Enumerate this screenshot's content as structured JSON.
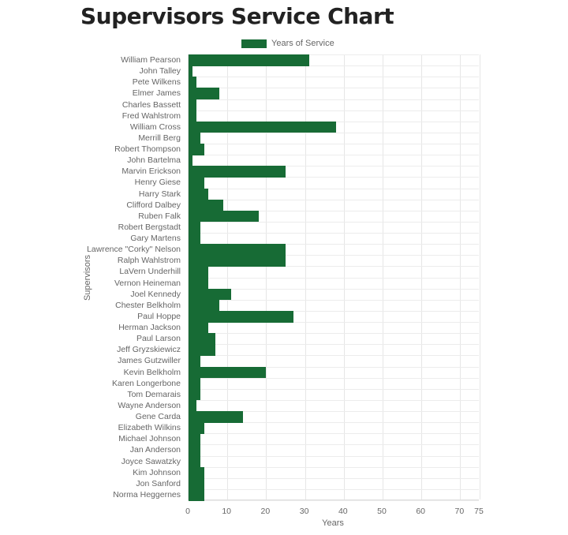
{
  "page": {
    "title": "Supervisors Service Chart"
  },
  "colors": {
    "bar": "#176b35",
    "grid": "#e6e6e6",
    "text": "#666666"
  },
  "chart_data": {
    "type": "bar",
    "orientation": "horizontal",
    "title": "Supervisors Service Chart",
    "xlabel": "Years",
    "ylabel": "Supervisors",
    "xlim": [
      0,
      75
    ],
    "xticks": [
      "0",
      "10",
      "20",
      "30",
      "40",
      "50",
      "60",
      "70",
      "75"
    ],
    "grid": true,
    "legend": {
      "position": "top",
      "entries": [
        "Years of Service"
      ]
    },
    "categories": [
      "William Pearson",
      "John Talley",
      "Pete Wilkens",
      "Elmer James",
      "Charles Bassett",
      "Fred Wahlstrom",
      "William Cross",
      "Merrill Berg",
      "Robert Thompson",
      "John Bartelma",
      "Marvin Erickson",
      "Henry Giese",
      "Harry Stark",
      "Clifford Dalbey",
      "Ruben Falk",
      "Robert Bergstadt",
      "Gary Martens",
      "Lawrence \"Corky\" Nelson",
      "Ralph Wahlstrom",
      "LaVern Underhill",
      "Vernon Heineman",
      "Joel Kennedy",
      "Chester Belkholm",
      "Paul Hoppe",
      "Herman Jackson",
      "Paul Larson",
      "Jeff Gryzskiewicz",
      "James Gutzwiller",
      "Kevin Belkholm",
      "Karen Longerbone",
      "Tom Demarais",
      "Wayne Anderson",
      "Gene Carda",
      "Elizabeth Wilkins",
      "Michael Johnson",
      "Jan Anderson",
      "Joyce Sawatzky",
      "Kim Johnson",
      "Jon Sanford",
      "Norma Heggernes"
    ],
    "series": [
      {
        "name": "Years of Service",
        "values": [
          31,
          1,
          2,
          8,
          2,
          2,
          38,
          3,
          4,
          1,
          25,
          4,
          5,
          9,
          18,
          3,
          3,
          25,
          25,
          5,
          5,
          11,
          8,
          27,
          5,
          7,
          7,
          3,
          20,
          3,
          3,
          2,
          14,
          4,
          3,
          3,
          3,
          4,
          4,
          4
        ]
      }
    ]
  }
}
